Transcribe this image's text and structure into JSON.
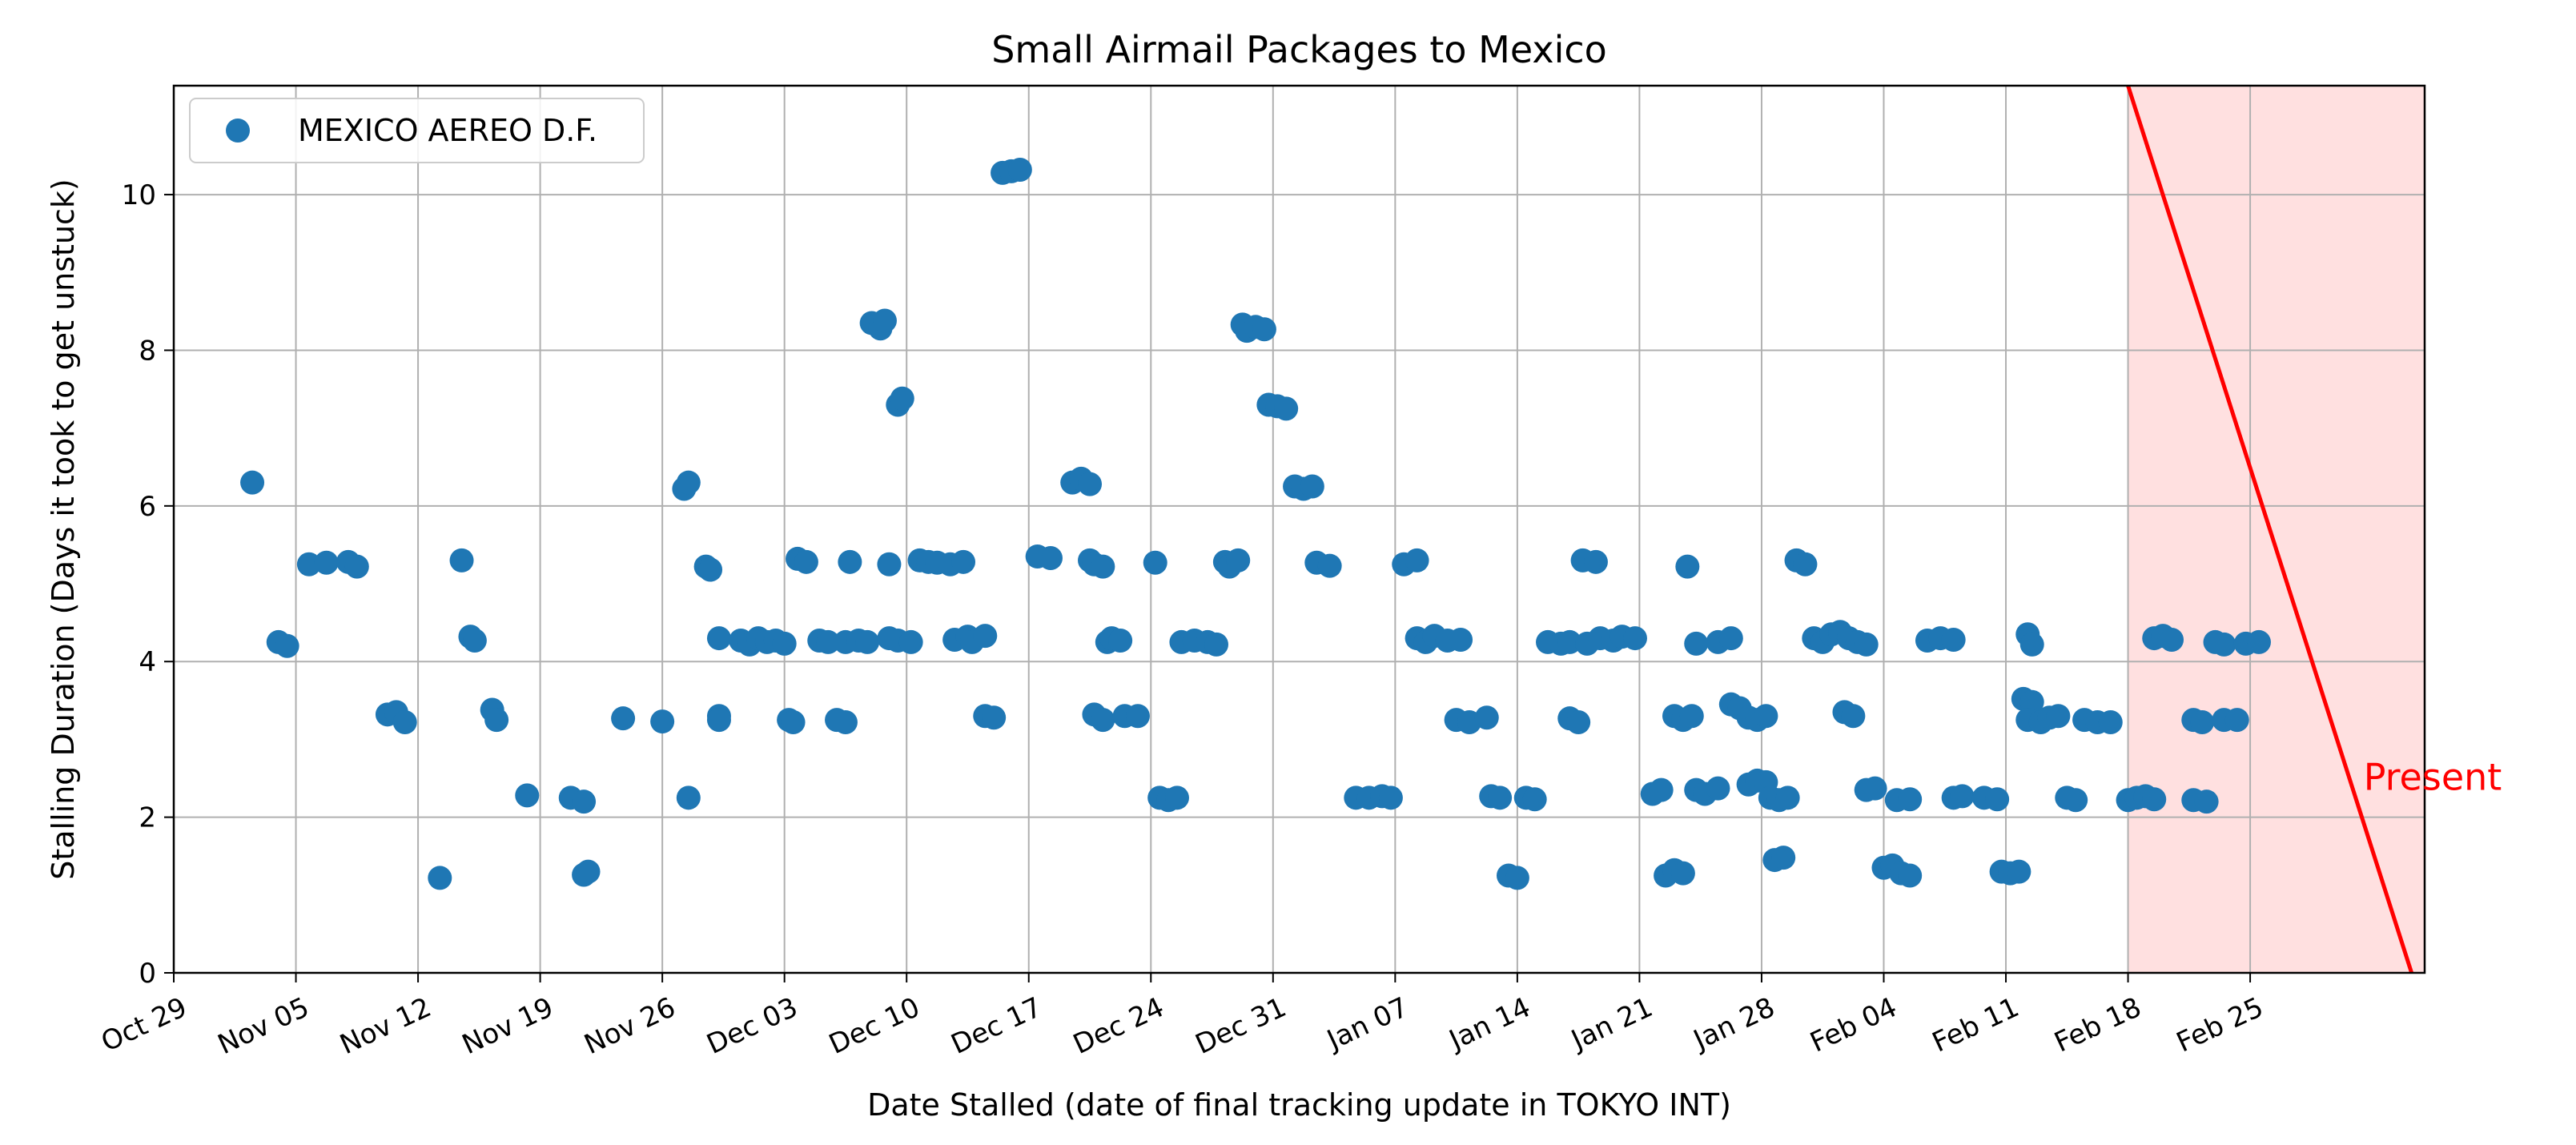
{
  "chart_data": {
    "type": "scatter",
    "title": "Small Airmail Packages to Mexico",
    "xlabel": "Date Stalled (date of final tracking update in TOKYO INT)",
    "ylabel": "Stalling Duration (Days it took to get unstuck)",
    "xlim": [
      "2023-10-29",
      "2024-03-06"
    ],
    "ylim": [
      0,
      11.4
    ],
    "yticks": [
      0,
      2,
      4,
      6,
      8,
      10
    ],
    "xticks": [
      {
        "date": "2023-10-29",
        "label": "Oct 29"
      },
      {
        "date": "2023-11-05",
        "label": "Nov 05"
      },
      {
        "date": "2023-11-12",
        "label": "Nov 12"
      },
      {
        "date": "2023-11-19",
        "label": "Nov 19"
      },
      {
        "date": "2023-11-26",
        "label": "Nov 26"
      },
      {
        "date": "2023-12-03",
        "label": "Dec 03"
      },
      {
        "date": "2023-12-10",
        "label": "Dec 10"
      },
      {
        "date": "2023-12-17",
        "label": "Dec 17"
      },
      {
        "date": "2023-12-24",
        "label": "Dec 24"
      },
      {
        "date": "2023-12-31",
        "label": "Dec 31"
      },
      {
        "date": "2024-01-07",
        "label": "Jan 07"
      },
      {
        "date": "2024-01-14",
        "label": "Jan 14"
      },
      {
        "date": "2024-01-21",
        "label": "Jan 21"
      },
      {
        "date": "2024-01-28",
        "label": "Jan 28"
      },
      {
        "date": "2024-02-04",
        "label": "Feb 04"
      },
      {
        "date": "2024-02-11",
        "label": "Feb 11"
      },
      {
        "date": "2024-02-18",
        "label": "Feb 18"
      },
      {
        "date": "2024-02-25",
        "label": "Feb 25"
      }
    ],
    "grid": true,
    "legend_position": "upper-left",
    "series": [
      {
        "name": "MEXICO AEREO D.F.",
        "color": "#1f77b4",
        "points": [
          [
            "2023-11-02 12:00",
            6.3
          ],
          [
            "2023-11-04 00:00",
            4.25
          ],
          [
            "2023-11-04 12:00",
            4.2
          ],
          [
            "2023-11-05 18:00",
            5.25
          ],
          [
            "2023-11-06 18:00",
            5.27
          ],
          [
            "2023-11-08 00:00",
            5.28
          ],
          [
            "2023-11-08 12:00",
            5.22
          ],
          [
            "2023-11-10 06:00",
            3.32
          ],
          [
            "2023-11-10 18:00",
            3.35
          ],
          [
            "2023-11-11 06:00",
            3.22
          ],
          [
            "2023-11-13 06:00",
            1.22
          ],
          [
            "2023-11-14 12:00",
            5.3
          ],
          [
            "2023-11-15 00:00",
            4.32
          ],
          [
            "2023-11-15 06:00",
            4.27
          ],
          [
            "2023-11-16 06:00",
            3.38
          ],
          [
            "2023-11-16 12:00",
            3.25
          ],
          [
            "2023-11-18 06:00",
            2.28
          ],
          [
            "2023-11-20 18:00",
            2.25
          ],
          [
            "2023-11-21 12:00",
            2.2
          ],
          [
            "2023-11-21 12:00",
            1.26
          ],
          [
            "2023-11-21 18:00",
            1.3
          ],
          [
            "2023-11-23 18:00",
            3.27
          ],
          [
            "2023-11-26 00:00",
            3.23
          ],
          [
            "2023-11-27 06:00",
            6.22
          ],
          [
            "2023-11-27 12:00",
            6.3
          ],
          [
            "2023-11-27 12:00",
            2.25
          ],
          [
            "2023-11-28 12:00",
            5.22
          ],
          [
            "2023-11-28 18:00",
            5.18
          ],
          [
            "2023-11-29 06:00",
            4.3
          ],
          [
            "2023-11-29 06:00",
            3.3
          ],
          [
            "2023-11-29 06:00",
            3.25
          ],
          [
            "2023-11-30 12:00",
            4.27
          ],
          [
            "2023-12-01 00:00",
            4.22
          ],
          [
            "2023-12-01 12:00",
            4.3
          ],
          [
            "2023-12-02 00:00",
            4.25
          ],
          [
            "2023-12-02 12:00",
            4.27
          ],
          [
            "2023-12-03 00:00",
            4.23
          ],
          [
            "2023-12-03 06:00",
            3.25
          ],
          [
            "2023-12-03 12:00",
            3.22
          ],
          [
            "2023-12-03 18:00",
            5.32
          ],
          [
            "2023-12-04 06:00",
            5.28
          ],
          [
            "2023-12-05 00:00",
            4.27
          ],
          [
            "2023-12-05 12:00",
            4.25
          ],
          [
            "2023-12-06 00:00",
            3.25
          ],
          [
            "2023-12-06 12:00",
            3.22
          ],
          [
            "2023-12-06 12:00",
            4.25
          ],
          [
            "2023-12-06 18:00",
            5.28
          ],
          [
            "2023-12-07 06:00",
            4.27
          ],
          [
            "2023-12-07 18:00",
            4.25
          ],
          [
            "2023-12-08 00:00",
            8.35
          ],
          [
            "2023-12-08 12:00",
            8.28
          ],
          [
            "2023-12-08 18:00",
            8.38
          ],
          [
            "2023-12-09 00:00",
            5.25
          ],
          [
            "2023-12-09 00:00",
            4.3
          ],
          [
            "2023-12-09 12:00",
            4.27
          ],
          [
            "2023-12-09 12:00",
            7.3
          ],
          [
            "2023-12-09 18:00",
            7.38
          ],
          [
            "2023-12-10 06:00",
            4.25
          ],
          [
            "2023-12-10 18:00",
            5.3
          ],
          [
            "2023-12-11 06:00",
            5.28
          ],
          [
            "2023-12-11 18:00",
            5.27
          ],
          [
            "2023-12-12 12:00",
            5.25
          ],
          [
            "2023-12-13 06:00",
            5.28
          ],
          [
            "2023-12-12 18:00",
            4.28
          ],
          [
            "2023-12-13 12:00",
            4.32
          ],
          [
            "2023-12-13 18:00",
            4.25
          ],
          [
            "2023-12-14 12:00",
            4.33
          ],
          [
            "2023-12-14 12:00",
            3.3
          ],
          [
            "2023-12-15 00:00",
            3.28
          ],
          [
            "2023-12-15 12:00",
            10.28
          ],
          [
            "2023-12-16 00:00",
            10.3
          ],
          [
            "2023-12-16 12:00",
            10.32
          ],
          [
            "2023-12-17 12:00",
            5.35
          ],
          [
            "2023-12-18 06:00",
            5.33
          ],
          [
            "2023-12-19 12:00",
            6.3
          ],
          [
            "2023-12-20 00:00",
            6.35
          ],
          [
            "2023-12-20 12:00",
            6.28
          ],
          [
            "2023-12-20 12:00",
            5.3
          ],
          [
            "2023-12-20 18:00",
            5.25
          ],
          [
            "2023-12-21 06:00",
            5.22
          ],
          [
            "2023-12-20 18:00",
            3.32
          ],
          [
            "2023-12-21 06:00",
            3.25
          ],
          [
            "2023-12-21 12:00",
            4.25
          ],
          [
            "2023-12-21 18:00",
            4.3
          ],
          [
            "2023-12-22 06:00",
            4.27
          ],
          [
            "2023-12-22 12:00",
            3.3
          ],
          [
            "2023-12-23 06:00",
            3.3
          ],
          [
            "2023-12-24 06:00",
            5.27
          ],
          [
            "2023-12-24 12:00",
            2.25
          ],
          [
            "2023-12-25 00:00",
            2.22
          ],
          [
            "2023-12-25 12:00",
            2.25
          ],
          [
            "2023-12-25 18:00",
            4.25
          ],
          [
            "2023-12-26 12:00",
            4.27
          ],
          [
            "2023-12-27 06:00",
            4.25
          ],
          [
            "2023-12-27 18:00",
            4.22
          ],
          [
            "2023-12-28 06:00",
            5.28
          ],
          [
            "2023-12-28 12:00",
            5.22
          ],
          [
            "2023-12-29 00:00",
            5.3
          ],
          [
            "2023-12-29 06:00",
            8.33
          ],
          [
            "2023-12-29 12:00",
            8.25
          ],
          [
            "2023-12-30 00:00",
            8.3
          ],
          [
            "2023-12-30 12:00",
            8.27
          ],
          [
            "2023-12-30 18:00",
            7.3
          ],
          [
            "2023-12-31 06:00",
            7.28
          ],
          [
            "2023-12-31 18:00",
            7.25
          ],
          [
            "2024-01-01 06:00",
            6.25
          ],
          [
            "2024-01-01 18:00",
            6.22
          ],
          [
            "2024-01-02 06:00",
            6.25
          ],
          [
            "2024-01-02 12:00",
            5.27
          ],
          [
            "2024-01-03 06:00",
            5.23
          ],
          [
            "2024-01-04 18:00",
            2.25
          ],
          [
            "2024-01-05 12:00",
            2.25
          ],
          [
            "2024-01-06 06:00",
            2.27
          ],
          [
            "2024-01-06 18:00",
            2.25
          ],
          [
            "2024-01-07 12:00",
            5.25
          ],
          [
            "2024-01-08 06:00",
            5.3
          ],
          [
            "2024-01-08 06:00",
            4.3
          ],
          [
            "2024-01-08 18:00",
            4.25
          ],
          [
            "2024-01-09 06:00",
            4.33
          ],
          [
            "2024-01-10 00:00",
            4.27
          ],
          [
            "2024-01-10 18:00",
            4.28
          ],
          [
            "2024-01-10 12:00",
            3.25
          ],
          [
            "2024-01-11 06:00",
            3.22
          ],
          [
            "2024-01-12 06:00",
            3.28
          ],
          [
            "2024-01-12 12:00",
            2.27
          ],
          [
            "2024-01-13 00:00",
            2.25
          ],
          [
            "2024-01-13 12:00",
            1.25
          ],
          [
            "2024-01-14 00:00",
            1.22
          ],
          [
            "2024-01-14 12:00",
            2.25
          ],
          [
            "2024-01-15 00:00",
            2.23
          ],
          [
            "2024-01-15 18:00",
            4.25
          ],
          [
            "2024-01-16 12:00",
            4.23
          ],
          [
            "2024-01-17 00:00",
            4.25
          ],
          [
            "2024-01-17 00:00",
            3.27
          ],
          [
            "2024-01-17 12:00",
            3.22
          ],
          [
            "2024-01-17 18:00",
            5.3
          ],
          [
            "2024-01-18 12:00",
            5.28
          ],
          [
            "2024-01-18 00:00",
            4.23
          ],
          [
            "2024-01-18 18:00",
            4.3
          ],
          [
            "2024-01-19 12:00",
            4.27
          ],
          [
            "2024-01-20 00:00",
            4.32
          ],
          [
            "2024-01-20 18:00",
            4.3
          ],
          [
            "2024-01-21 18:00",
            2.3
          ],
          [
            "2024-01-22 06:00",
            2.35
          ],
          [
            "2024-01-22 12:00",
            1.25
          ],
          [
            "2024-01-23 00:00",
            1.32
          ],
          [
            "2024-01-23 12:00",
            1.28
          ],
          [
            "2024-01-23 00:00",
            3.3
          ],
          [
            "2024-01-23 12:00",
            3.25
          ],
          [
            "2024-01-24 00:00",
            3.3
          ],
          [
            "2024-01-23 18:00",
            5.22
          ],
          [
            "2024-01-24 06:00",
            4.23
          ],
          [
            "2024-01-24 06:00",
            2.35
          ],
          [
            "2024-01-24 18:00",
            2.3
          ],
          [
            "2024-01-25 12:00",
            2.37
          ],
          [
            "2024-01-25 12:00",
            4.25
          ],
          [
            "2024-01-26 06:00",
            4.3
          ],
          [
            "2024-01-26 06:00",
            3.45
          ],
          [
            "2024-01-26 18:00",
            3.4
          ],
          [
            "2024-01-27 06:00",
            3.28
          ],
          [
            "2024-01-27 06:00",
            2.42
          ],
          [
            "2024-01-27 18:00",
            2.47
          ],
          [
            "2024-01-28 06:00",
            2.45
          ],
          [
            "2024-01-27 18:00",
            3.25
          ],
          [
            "2024-01-28 06:00",
            3.3
          ],
          [
            "2024-01-28 12:00",
            2.25
          ],
          [
            "2024-01-29 00:00",
            2.22
          ],
          [
            "2024-01-29 12:00",
            2.25
          ],
          [
            "2024-01-28 18:00",
            1.45
          ],
          [
            "2024-01-29 06:00",
            1.48
          ],
          [
            "2024-01-30 00:00",
            5.3
          ],
          [
            "2024-01-30 12:00",
            5.25
          ],
          [
            "2024-01-31 00:00",
            4.3
          ],
          [
            "2024-01-31 12:00",
            4.25
          ],
          [
            "2024-02-01 00:00",
            4.35
          ],
          [
            "2024-02-01 12:00",
            4.38
          ],
          [
            "2024-02-02 00:00",
            4.3
          ],
          [
            "2024-02-01 18:00",
            3.35
          ],
          [
            "2024-02-02 06:00",
            3.3
          ],
          [
            "2024-02-02 12:00",
            4.25
          ],
          [
            "2024-02-03 00:00",
            4.22
          ],
          [
            "2024-02-03 00:00",
            2.35
          ],
          [
            "2024-02-03 12:00",
            2.37
          ],
          [
            "2024-02-04 00:00",
            1.35
          ],
          [
            "2024-02-04 12:00",
            1.38
          ],
          [
            "2024-02-05 00:00",
            1.28
          ],
          [
            "2024-02-05 12:00",
            1.25
          ],
          [
            "2024-02-04 18:00",
            2.22
          ],
          [
            "2024-02-05 12:00",
            2.23
          ],
          [
            "2024-02-06 12:00",
            4.27
          ],
          [
            "2024-02-07 06:00",
            4.3
          ],
          [
            "2024-02-08 00:00",
            4.28
          ],
          [
            "2024-02-08 00:00",
            2.25
          ],
          [
            "2024-02-08 12:00",
            2.27
          ],
          [
            "2024-02-09 18:00",
            2.25
          ],
          [
            "2024-02-10 12:00",
            2.23
          ],
          [
            "2024-02-10 18:00",
            1.3
          ],
          [
            "2024-02-11 06:00",
            1.28
          ],
          [
            "2024-02-11 18:00",
            1.3
          ],
          [
            "2024-02-12 00:00",
            3.52
          ],
          [
            "2024-02-12 12:00",
            3.48
          ],
          [
            "2024-02-12 06:00",
            4.35
          ],
          [
            "2024-02-12 12:00",
            4.22
          ],
          [
            "2024-02-12 06:00",
            3.25
          ],
          [
            "2024-02-13 00:00",
            3.22
          ],
          [
            "2024-02-13 12:00",
            3.28
          ],
          [
            "2024-02-14 00:00",
            3.3
          ],
          [
            "2024-02-14 12:00",
            2.25
          ],
          [
            "2024-02-15 00:00",
            2.22
          ],
          [
            "2024-02-15 12:00",
            3.25
          ],
          [
            "2024-02-16 06:00",
            3.22
          ],
          [
            "2024-02-17 00:00",
            3.22
          ],
          [
            "2024-02-18 00:00",
            2.22
          ],
          [
            "2024-02-18 12:00",
            2.25
          ],
          [
            "2024-02-19 00:00",
            2.27
          ],
          [
            "2024-02-19 12:00",
            2.23
          ],
          [
            "2024-02-19 12:00",
            4.3
          ],
          [
            "2024-02-20 00:00",
            4.33
          ],
          [
            "2024-02-20 12:00",
            4.28
          ],
          [
            "2024-02-21 18:00",
            3.25
          ],
          [
            "2024-02-22 06:00",
            3.22
          ],
          [
            "2024-02-21 18:00",
            2.22
          ],
          [
            "2024-02-22 12:00",
            2.2
          ],
          [
            "2024-02-23 00:00",
            4.25
          ],
          [
            "2024-02-23 12:00",
            4.22
          ],
          [
            "2024-02-23 12:00",
            3.25
          ],
          [
            "2024-02-24 06:00",
            3.25
          ],
          [
            "2024-02-24 18:00",
            4.23
          ],
          [
            "2024-02-25 12:00",
            4.25
          ]
        ]
      }
    ],
    "annotation": {
      "text": "Present",
      "color": "#ff0000",
      "line": {
        "from": [
          "2024-02-18 00:00",
          11.4
        ],
        "to": [
          "2024-03-05 06:00",
          0
        ]
      },
      "shaded_region": [
        "2024-02-18 00:00",
        "2024-03-06 00:00"
      ],
      "shade_color": "#ffe0e0",
      "text_anchor": [
        "2024-03-02 12:00",
        2.35
      ]
    }
  }
}
